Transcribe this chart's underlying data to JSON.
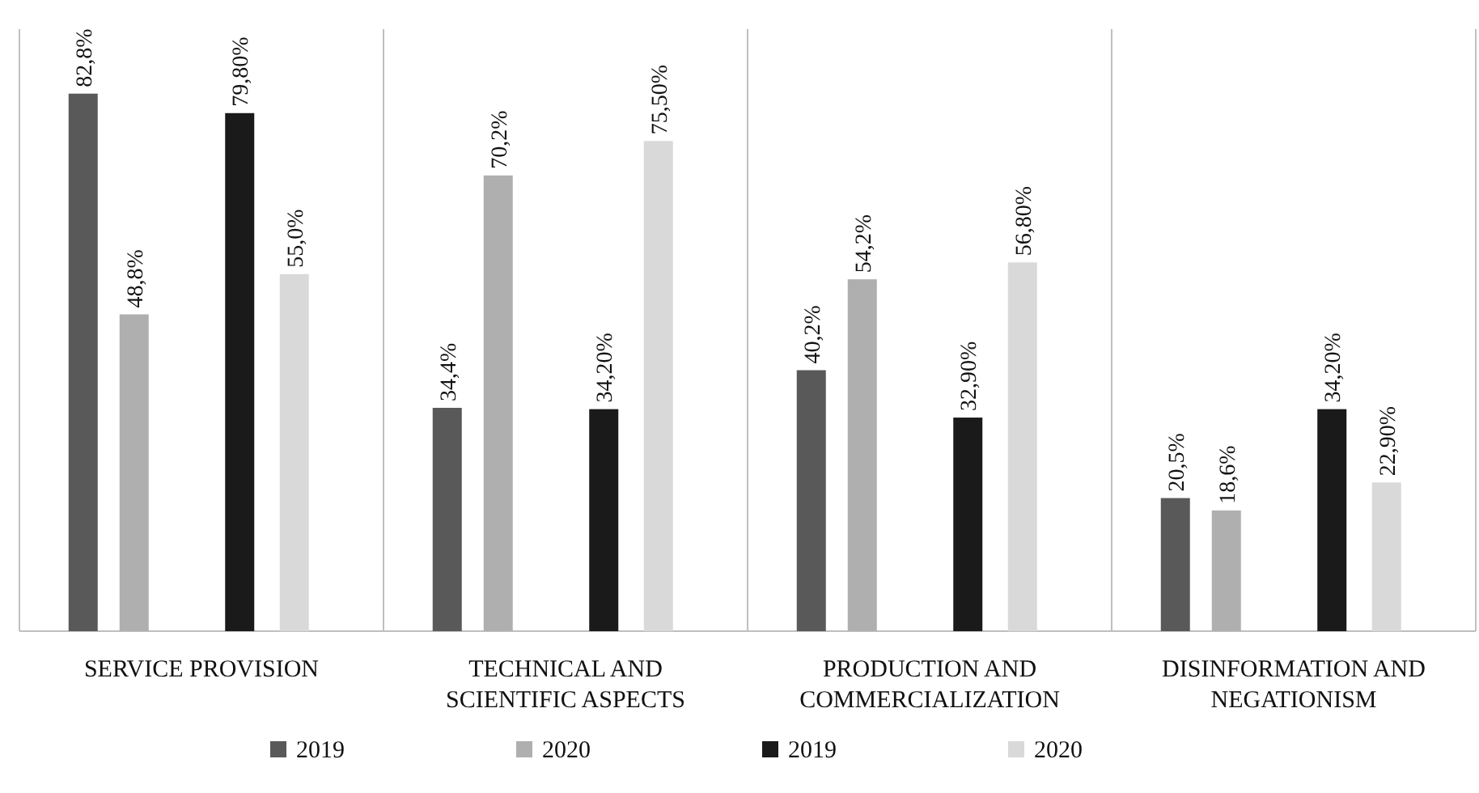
{
  "chart_data": {
    "type": "bar",
    "categories": [
      "SERVICE PROVISION",
      "TECHNICAL AND SCIENTIFIC ASPECTS",
      "PRODUCTION AND COMMERCIALIZATION",
      "DISINFORMATION AND NEGATIONISM"
    ],
    "series": [
      {
        "name": "2019",
        "color": "#595959",
        "values": [
          82.8,
          34.4,
          40.2,
          20.5
        ],
        "value_labels": [
          "82,8%",
          "34,4%",
          "40,2%",
          "20,5%"
        ]
      },
      {
        "name": "2020",
        "color": "#afafaf",
        "values": [
          48.8,
          70.2,
          54.2,
          18.6
        ],
        "value_labels": [
          "48,8%",
          "70,2%",
          "54,2%",
          "18,6%"
        ]
      },
      {
        "name": "2019",
        "color": "#1a1a1a",
        "values": [
          79.8,
          34.2,
          32.9,
          34.2
        ],
        "value_labels": [
          "79,80%",
          "34,20%",
          "32,90%",
          "34,20%"
        ]
      },
      {
        "name": "2020",
        "color": "#d9d9d9",
        "values": [
          55.0,
          75.5,
          56.8,
          22.9
        ],
        "value_labels": [
          "55,0%",
          "75,50%",
          "56,80%",
          "22,90%"
        ]
      }
    ],
    "legend": "bottom",
    "grid": false
  }
}
